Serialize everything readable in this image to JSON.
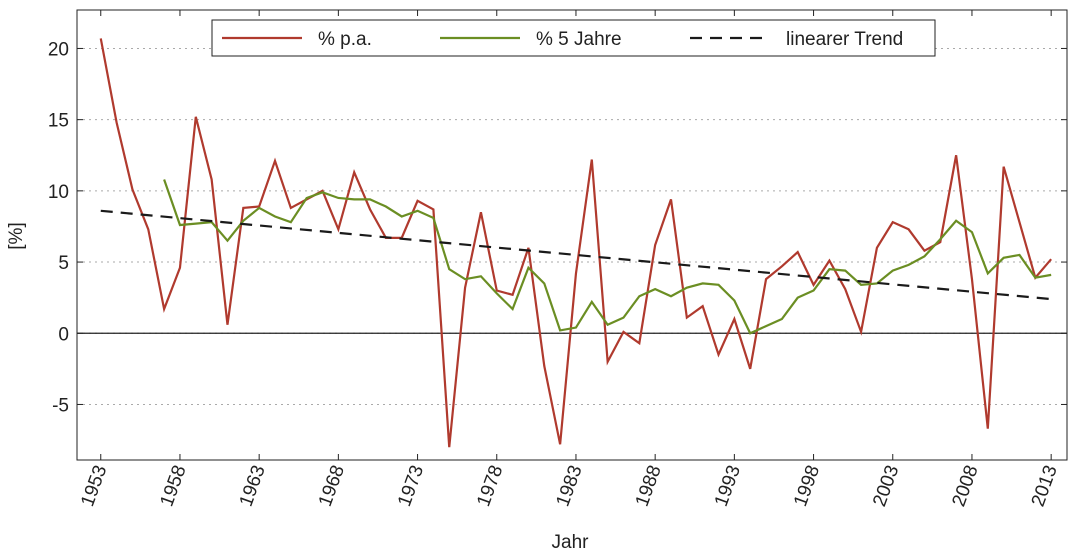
{
  "chart_data": {
    "type": "line",
    "xlabel": "Jahr",
    "ylabel": "[%]",
    "x": [
      1953,
      1954,
      1955,
      1956,
      1957,
      1958,
      1959,
      1960,
      1961,
      1962,
      1963,
      1964,
      1965,
      1966,
      1967,
      1968,
      1969,
      1970,
      1971,
      1972,
      1973,
      1974,
      1975,
      1976,
      1977,
      1978,
      1979,
      1980,
      1981,
      1982,
      1983,
      1984,
      1985,
      1986,
      1987,
      1988,
      1989,
      1990,
      1991,
      1992,
      1993,
      1994,
      1995,
      1996,
      1997,
      1998,
      1999,
      2000,
      2001,
      2002,
      2003,
      2004,
      2005,
      2006,
      2007,
      2008,
      2009,
      2010,
      2011,
      2012,
      2013
    ],
    "series": [
      {
        "name": "% p.a.",
        "color": "#b03a2e",
        "values": [
          20.7,
          14.8,
          10.1,
          7.3,
          1.7,
          4.6,
          15.2,
          10.8,
          0.6,
          8.8,
          8.9,
          12.1,
          8.8,
          9.4,
          10.0,
          7.3,
          11.3,
          8.7,
          6.7,
          6.7,
          9.3,
          8.7,
          -8.0,
          3.2,
          8.5,
          3.0,
          2.7,
          6.0,
          -2.3,
          -7.8,
          4.2,
          12.2,
          -2.0,
          0.1,
          -0.7,
          6.2,
          9.4,
          1.1,
          1.9,
          -1.5,
          1.0,
          -2.5,
          3.8,
          4.7,
          5.7,
          3.4,
          5.1,
          3.1,
          0.1,
          6.0,
          7.8,
          7.3,
          5.8,
          6.4,
          12.5,
          3.8,
          -6.7,
          11.7,
          7.8,
          3.9,
          5.2
        ]
      },
      {
        "name": "% 5 Jahre",
        "color": "#6b8e23",
        "values": [
          null,
          null,
          null,
          null,
          10.8,
          7.6,
          7.7,
          7.8,
          6.5,
          7.9,
          8.8,
          8.2,
          7.8,
          9.5,
          9.9,
          9.5,
          9.4,
          9.4,
          8.9,
          8.2,
          8.6,
          8.1,
          4.5,
          3.8,
          4.0,
          2.8,
          1.7,
          4.6,
          3.5,
          0.2,
          0.4,
          2.2,
          0.6,
          1.1,
          2.6,
          3.1,
          2.6,
          3.2,
          3.5,
          3.4,
          2.3,
          0.0,
          0.5,
          1.0,
          2.5,
          3.0,
          4.5,
          4.4,
          3.4,
          3.5,
          4.4,
          4.8,
          5.4,
          6.6,
          7.9,
          7.1,
          4.2,
          5.3,
          5.5,
          3.9,
          4.1
        ]
      },
      {
        "name": "linearer Trend",
        "color": "#1a1a1a",
        "dashed": true,
        "x": [
          1953,
          2013
        ],
        "values": [
          8.6,
          2.4
        ]
      }
    ],
    "xlim": [
      1951.5,
      2014
    ],
    "ylim": [
      -8.9,
      22.7
    ],
    "xticks": [
      1953,
      1958,
      1963,
      1968,
      1973,
      1978,
      1983,
      1988,
      1993,
      1998,
      2003,
      2008,
      2013
    ],
    "yticks": [
      -5,
      0,
      5,
      10,
      15,
      20
    ],
    "grid": true,
    "legend": "upper center"
  }
}
